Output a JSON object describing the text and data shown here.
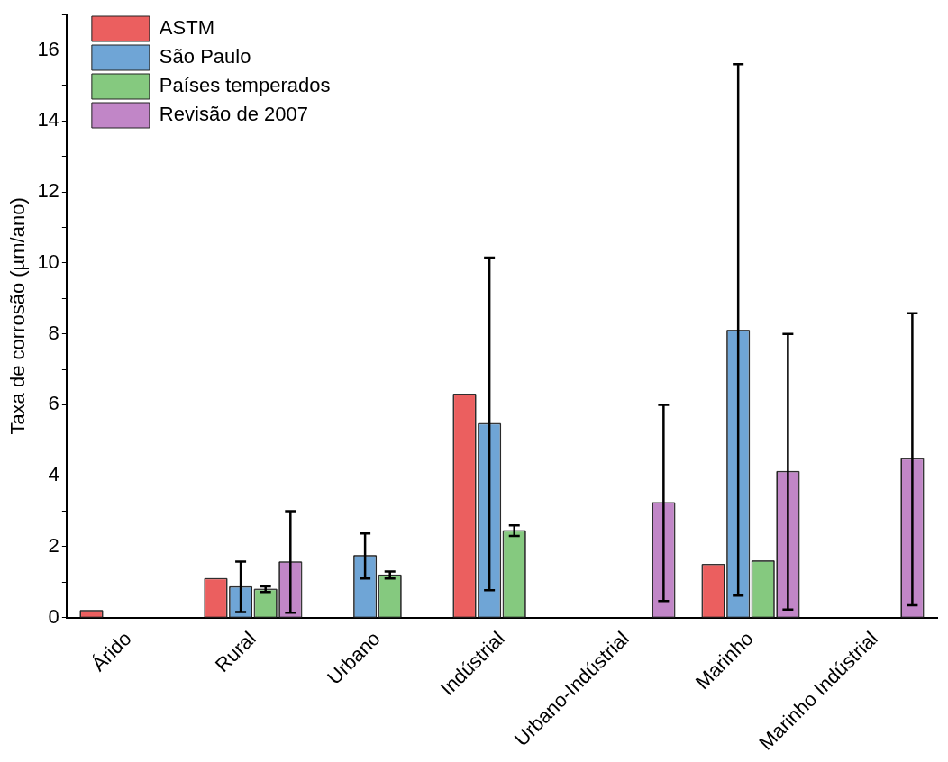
{
  "chart_data": {
    "type": "bar",
    "ylabel": "Taxa de corrosão (µm/ano)",
    "categories": [
      "Árido",
      "Rural",
      "Urbano",
      "Indústrial",
      "Urbano-Indústrial",
      "Marinho",
      "Marinho Indústrial"
    ],
    "series": [
      {
        "name": "ASTM",
        "color": "#eb5f5f",
        "values": [
          0.2,
          1.1,
          null,
          6.3,
          null,
          1.5,
          null
        ]
      },
      {
        "name": "São Paulo",
        "color": "#6fa5d6",
        "values": [
          null,
          0.87,
          1.75,
          5.47,
          null,
          8.1,
          null
        ],
        "errors": [
          null,
          [
            0.16,
            1.58
          ],
          [
            1.1,
            2.37
          ],
          [
            0.77,
            10.15
          ],
          null,
          [
            0.62,
            15.6
          ],
          null
        ]
      },
      {
        "name": "Países temperados",
        "color": "#85c97f",
        "values": [
          null,
          0.8,
          1.2,
          2.45,
          null,
          1.6,
          null
        ],
        "errors": [
          null,
          [
            0.72,
            0.88
          ],
          [
            1.1,
            1.3
          ],
          [
            2.3,
            2.6
          ],
          null,
          null,
          null
        ]
      },
      {
        "name": "Revisão de 2007",
        "color": "#c186c7",
        "values": [
          null,
          1.57,
          null,
          null,
          3.24,
          4.12,
          4.48
        ],
        "errors": [
          null,
          [
            0.14,
            3.0
          ],
          null,
          null,
          [
            0.47,
            6.0
          ],
          [
            0.23,
            8.0
          ],
          [
            0.35,
            8.58
          ]
        ]
      }
    ],
    "ylim": [
      0,
      17
    ],
    "yticks": [
      0,
      {
        "value": 1,
        "label": null
      },
      2,
      {
        "value": 3,
        "label": null
      },
      4,
      {
        "value": 5,
        "label": null
      },
      6,
      {
        "value": 7,
        "label": null
      },
      8,
      {
        "value": 9,
        "label": null
      },
      10,
      {
        "value": 11,
        "label": null
      },
      12,
      {
        "value": 13,
        "label": null
      },
      14,
      {
        "value": 15,
        "label": null
      },
      16,
      {
        "value": 17,
        "label": null
      }
    ],
    "grid": false,
    "legend": "top left"
  }
}
